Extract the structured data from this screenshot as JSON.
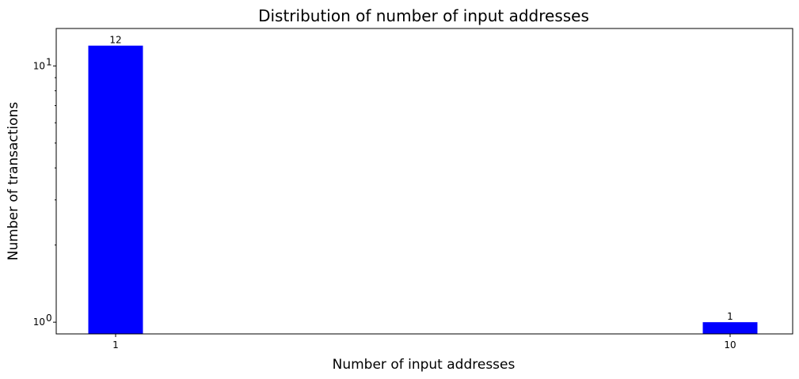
{
  "chart_data": {
    "type": "bar",
    "title": "Distribution of number of input addresses",
    "xlabel": "Number of input addresses",
    "ylabel": "Number of transactions",
    "categories": [
      "1",
      "10"
    ],
    "values": [
      12,
      1
    ],
    "data_labels": [
      "12",
      "1"
    ],
    "x_ticks": [
      "1",
      "10"
    ],
    "y_scale": "log",
    "ylim": [
      0.9,
      14
    ],
    "y_ticks": [
      {
        "value": 1,
        "base": "10",
        "exp": "0"
      },
      {
        "value": 10,
        "base": "10",
        "exp": "1"
      }
    ],
    "bar_color": "#0000ff",
    "grid": false,
    "legend": "none"
  }
}
